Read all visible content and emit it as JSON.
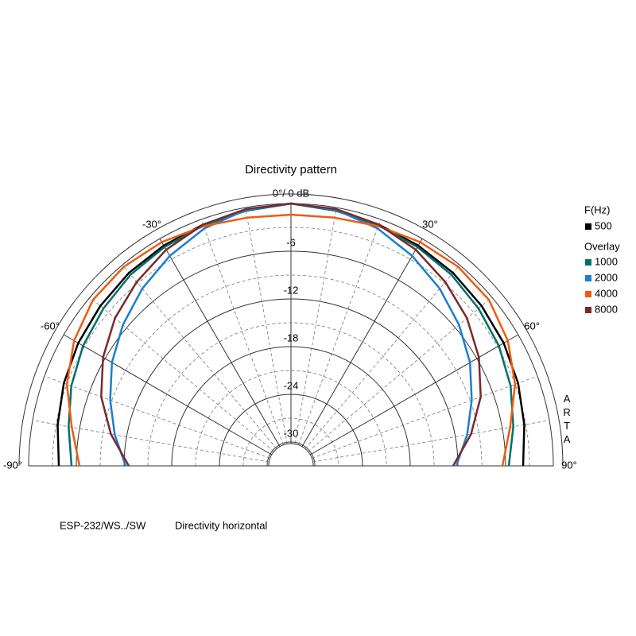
{
  "chart_data": {
    "type": "polar",
    "title": "Directivity pattern",
    "top_label": "0°/ 0 dB",
    "watermark": "ARTA",
    "footer": [
      "ESP-232/WS../SW",
      "Directivity horizontal"
    ],
    "legend_title": "F(Hz)",
    "overlay_title": "Overlay",
    "thetalim": [
      -90,
      90
    ],
    "thetaticks": [
      {
        "value": -90,
        "label": "-90°"
      },
      {
        "value": -60,
        "label": "-60°"
      },
      {
        "value": -30,
        "label": "-30°"
      },
      {
        "value": 30,
        "label": "30°"
      },
      {
        "value": 60,
        "label": "60°"
      },
      {
        "value": 90,
        "label": "90°"
      }
    ],
    "rlim": [
      -33,
      0
    ],
    "rticks": [
      -6,
      -12,
      -18,
      -24,
      -30
    ],
    "theta": [
      -90,
      -80,
      -70,
      -60,
      -50,
      -40,
      -30,
      -20,
      -10,
      0,
      10,
      20,
      30,
      40,
      50,
      60,
      70,
      80,
      90
    ],
    "series": [
      {
        "name": "500",
        "color": "#000000",
        "values": [
          -3.8,
          -3.2,
          -2.6,
          -2.1,
          -1.7,
          -1.3,
          -1.0,
          -0.7,
          -0.4,
          0,
          -0.4,
          -0.7,
          -1.0,
          -1.3,
          -1.7,
          -2.1,
          -2.6,
          -3.2,
          -3.8
        ]
      },
      {
        "name": "1000",
        "color": "#00706a",
        "values": [
          -5.4,
          -4.6,
          -3.6,
          -2.8,
          -2.2,
          -1.6,
          -1.2,
          -0.8,
          -0.4,
          0,
          -0.4,
          -0.8,
          -1.2,
          -1.6,
          -2.2,
          -2.8,
          -3.6,
          -4.6,
          -5.6
        ]
      },
      {
        "name": "2000",
        "color": "#1a7fd0",
        "values": [
          -12.2,
          -10.5,
          -8.8,
          -7.0,
          -5.4,
          -3.9,
          -2.5,
          -1.2,
          -0.3,
          0,
          -0.3,
          -1.2,
          -2.5,
          -3.9,
          -5.4,
          -7.0,
          -8.8,
          -10.5,
          -12.2
        ]
      },
      {
        "name": "4000",
        "color": "#f05a0f",
        "values": [
          -6.4,
          -5.0,
          -3.0,
          -1.5,
          -0.5,
          -0.3,
          -0.5,
          -0.9,
          -1.3,
          -1.4,
          -1.3,
          -0.9,
          -0.5,
          -0.3,
          -0.5,
          -1.5,
          -3.0,
          -5.0,
          -6.4
        ]
      },
      {
        "name": "8000",
        "color": "#7a2a2a",
        "values": [
          -12.6,
          -10.0,
          -7.6,
          -5.7,
          -4.1,
          -2.8,
          -1.6,
          -0.7,
          -0.2,
          0,
          -0.2,
          -0.7,
          -1.6,
          -2.8,
          -4.1,
          -5.7,
          -7.6,
          -10.0,
          -12.6
        ]
      }
    ]
  }
}
